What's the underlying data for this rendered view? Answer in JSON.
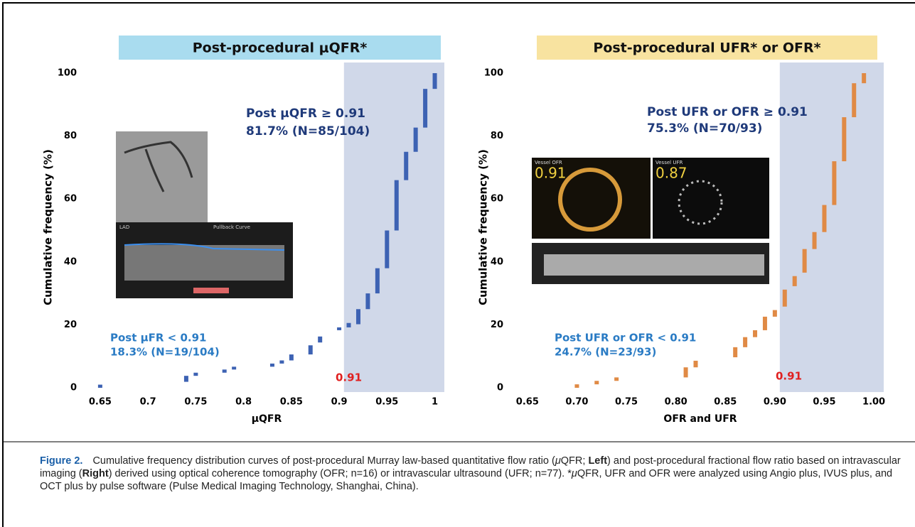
{
  "chart_data": [
    {
      "type": "range",
      "title": "Post-procedural μQFR*",
      "x_label": "μQFR",
      "y_label": "Cumulative frequency (%)",
      "color": "#3d62b3",
      "title_color": "#a9dcef",
      "shade_color": "#c8d1e5",
      "highlight_xrange": [
        0.905,
        1.01
      ],
      "x": [
        0.65,
        0.74,
        0.75,
        0.78,
        0.79,
        0.83,
        0.84,
        0.85,
        0.87,
        0.88,
        0.9,
        0.91,
        0.92,
        0.93,
        0.94,
        0.95,
        0.96,
        0.97,
        0.98,
        0.99,
        1.0
      ],
      "low": [
        0,
        1.9,
        3.8,
        4.8,
        5.8,
        6.7,
        7.7,
        8.7,
        10.6,
        14.4,
        18.3,
        19.2,
        20.2,
        25,
        30,
        38,
        50,
        66,
        75,
        82.7,
        95
      ],
      "high": [
        1,
        3.8,
        4.8,
        5.8,
        6.7,
        7.7,
        8.7,
        10.6,
        13.5,
        16.3,
        19.2,
        20.6,
        25,
        30,
        38,
        50,
        66,
        75,
        82.7,
        95,
        100
      ],
      "xlim": [
        0.63,
        1.01
      ],
      "ylim": [
        0,
        100
      ],
      "xticks": [
        0.65,
        0.7,
        0.75,
        0.8,
        0.85,
        0.9,
        0.95,
        1
      ],
      "yticks": [
        0,
        20,
        40,
        60,
        80,
        100
      ],
      "annotations": [
        "Post μQFR ≥ 0.91",
        "81.7% (N=85/104)",
        "Post μFR < 0.91",
        "18.3% (N=19/104)",
        "0.91"
      ]
    },
    {
      "type": "range",
      "title": "Post-procedural UFR* or OFR*",
      "x_label": "OFR and UFR",
      "y_label": "Cumulative frequency (%)",
      "color": "#e08a45",
      "title_color": "#f8e3a0",
      "shade_color": "#c8d1e5",
      "highlight_xrange": [
        0.905,
        1.01
      ],
      "x": [
        0.7,
        0.72,
        0.74,
        0.81,
        0.82,
        0.86,
        0.87,
        0.88,
        0.89,
        0.9,
        0.91,
        0.92,
        0.93,
        0.94,
        0.95,
        0.96,
        0.97,
        0.98,
        0.99
      ],
      "low": [
        0,
        1.1,
        2.2,
        3.3,
        6.5,
        9.7,
        12.9,
        16.1,
        18.3,
        22.6,
        25.8,
        32.3,
        36.6,
        44.1,
        49.5,
        58.1,
        72,
        86,
        96.8
      ],
      "high": [
        1.1,
        2.2,
        3.3,
        6.5,
        8.6,
        12.9,
        16.1,
        18.3,
        22.6,
        24.7,
        31.2,
        35.5,
        44.1,
        49.5,
        58.1,
        72,
        86,
        96.8,
        100
      ],
      "xlim": [
        0.63,
        1.01
      ],
      "ylim": [
        0,
        100
      ],
      "xticks": [
        0.65,
        {
          "value": 0.7,
          "label": "0.70"
        },
        0.75,
        {
          "value": 0.8,
          "label": "0.80"
        },
        0.85,
        {
          "value": 0.9,
          "label": "0.90"
        },
        0.95,
        {
          "value": 1,
          "label": "1.00"
        }
      ],
      "yticks": [
        0,
        20,
        40,
        60,
        80,
        100
      ],
      "annotations": [
        "Post UFR or OFR ≥ 0.91",
        "75.3% (N=70/93)",
        "Post UFR or OFR < 0.91",
        "24.7% (N=23/93)",
        "0.91"
      ]
    }
  ],
  "insets": [
    "LAD",
    "Pullback Curve",
    "Vessel OFR",
    "0.91",
    "Vessel UFR",
    "0.87"
  ],
  "caption": {
    "label": "Figure 2.",
    "parts": [
      "Cumulative frequency distribution curves of post-procedural Murray law-based quantitative flow ratio (",
      "μ",
      "QFR; ",
      "Left",
      ") and post-procedural fractional flow ratio based on intravascular imaging (",
      "Right",
      ") derived using optical coherence tomography (OFR; n=16) or intravascular ultrasound (UFR; n=77). *",
      "μ",
      "QFR, UFR and OFR were analyzed using Angio plus, IVUS plus, and OCT plus by pulse software (Pulse Medical Imaging Technology, Shanghai, China)."
    ]
  }
}
